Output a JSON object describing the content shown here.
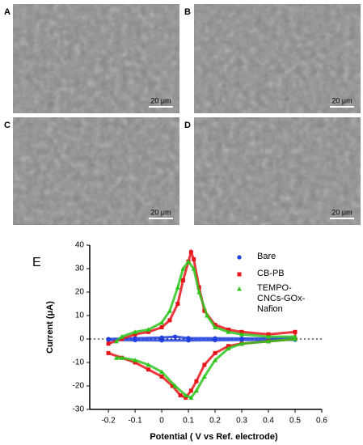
{
  "panels": [
    {
      "label": "A",
      "scale_bar": "20 μm"
    },
    {
      "label": "B",
      "scale_bar": "20 μm"
    },
    {
      "label": "C",
      "scale_bar": "20 μm"
    },
    {
      "label": "D",
      "scale_bar": "20 μm"
    }
  ],
  "chart_data": {
    "type": "scatter",
    "panel_label": "E",
    "x_label": "Potential ( V vs Ref. electrode)",
    "y_label": "Current (μA)",
    "xlim": [
      -0.27,
      0.6
    ],
    "xticks": [
      -0.2,
      -0.1,
      0,
      0.1,
      0.2,
      0.3,
      0.4,
      0.5,
      0.6
    ],
    "ylim": [
      -30,
      40
    ],
    "yticks": [
      -30,
      -20,
      -10,
      0,
      10,
      20,
      30,
      40
    ],
    "zero_line": true,
    "legend": "top-right",
    "series": [
      {
        "name": "Bare",
        "color": "#1f3fe0",
        "marker": "circle",
        "x": [
          -0.2,
          -0.1,
          0,
          0.05,
          0.1,
          0.2,
          0.3,
          0.4,
          0.5,
          0.5,
          0.4,
          0.3,
          0.2,
          0.1,
          0,
          -0.1,
          -0.2
        ],
        "values": [
          0,
          0.3,
          0.6,
          1,
          0.4,
          0.3,
          0.2,
          0.2,
          0.3,
          -0.3,
          -0.4,
          -0.4,
          -0.5,
          -0.6,
          -0.6,
          -0.5,
          -0.4
        ]
      },
      {
        "name": "CB-PB",
        "color": "#e8141b",
        "marker": "square",
        "x": [
          -0.2,
          -0.15,
          -0.1,
          -0.05,
          0,
          0.03,
          0.06,
          0.08,
          0.1,
          0.11,
          0.12,
          0.14,
          0.16,
          0.2,
          0.25,
          0.3,
          0.4,
          0.5,
          0.5,
          0.4,
          0.3,
          0.25,
          0.2,
          0.16,
          0.13,
          0.11,
          0.09,
          0.07,
          0.04,
          0,
          -0.05,
          -0.1,
          -0.15,
          -0.2
        ],
        "values": [
          -2,
          0,
          2,
          3,
          5,
          8,
          15,
          25,
          33,
          37,
          34,
          22,
          12,
          6,
          4,
          3,
          2,
          3,
          0,
          -1,
          -2,
          -3,
          -6,
          -11,
          -18,
          -22,
          -25,
          -24,
          -20,
          -16,
          -13,
          -10,
          -8,
          -6
        ]
      },
      {
        "name": "TEMPO-CNCs-GOx-Nafion",
        "color": "#2fc41c",
        "marker": "triangle",
        "x": [
          -0.17,
          -0.15,
          -0.1,
          -0.05,
          0,
          0.03,
          0.06,
          0.08,
          0.1,
          0.12,
          0.14,
          0.17,
          0.2,
          0.25,
          0.3,
          0.4,
          0.5,
          0.5,
          0.4,
          0.3,
          0.25,
          0.2,
          0.16,
          0.13,
          0.11,
          0.09,
          0.05,
          0,
          -0.05,
          -0.1,
          -0.15,
          -0.17
        ],
        "values": [
          -1,
          1,
          3,
          4,
          7,
          12,
          22,
          30,
          33,
          30,
          20,
          10,
          5,
          3,
          2,
          1,
          1,
          0,
          -1,
          -2,
          -4,
          -9,
          -16,
          -22,
          -25,
          -24,
          -20,
          -14,
          -11,
          -9,
          -8,
          -8
        ]
      }
    ]
  }
}
